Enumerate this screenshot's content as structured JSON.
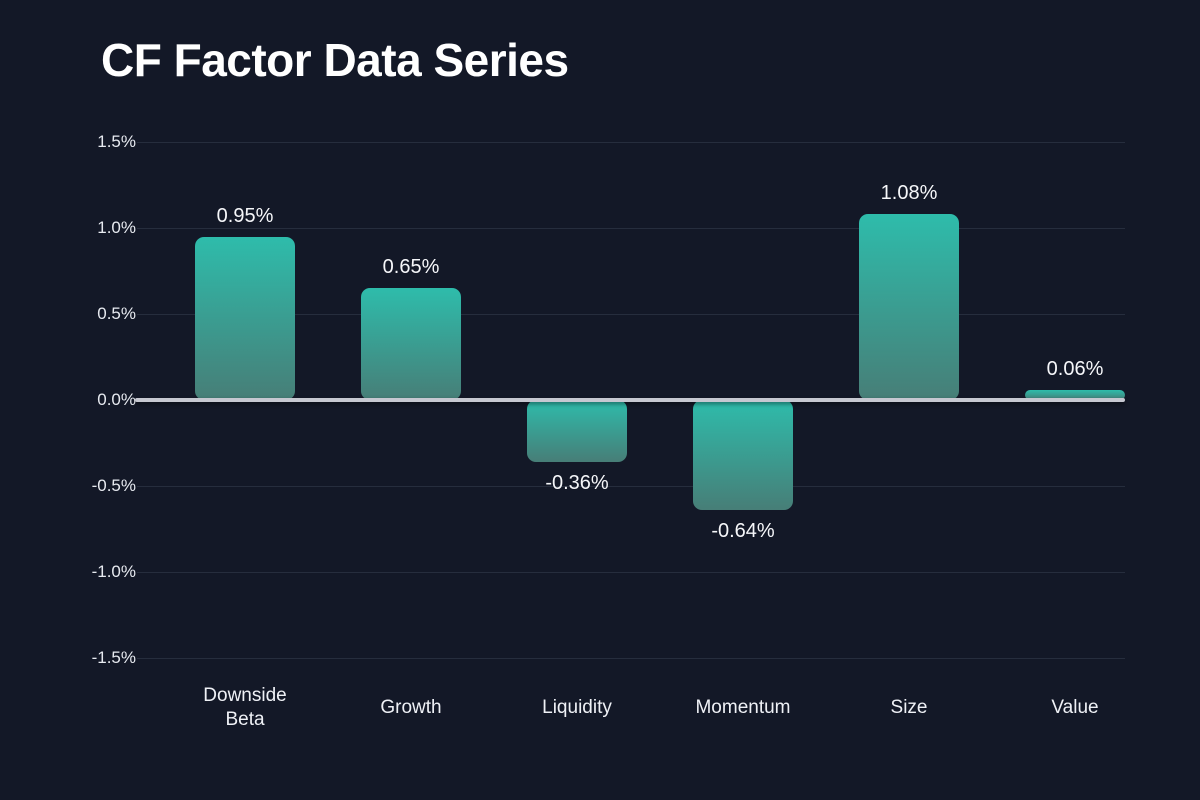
{
  "chart_data": {
    "type": "bar",
    "title": "CF Factor Data Series",
    "categories": [
      "Downside Beta",
      "Growth",
      "Liquidity",
      "Momentum",
      "Size",
      "Value"
    ],
    "values": [
      0.95,
      0.65,
      -0.36,
      -0.64,
      1.08,
      0.06
    ],
    "value_labels": [
      "0.95%",
      "0.65%",
      "-0.36%",
      "-0.64%",
      "1.08%",
      "0.06%"
    ],
    "xlabel": "",
    "ylabel": "",
    "ylim": [
      -1.5,
      1.5
    ],
    "ytick_step": 0.5,
    "yticks": [
      "1.5%",
      "1.0%",
      "0.5%",
      "0.0%",
      "-0.5%",
      "-1.0%",
      "-1.5%"
    ],
    "grid": true,
    "legend": false,
    "zero_line": true,
    "colors": {
      "background": "#131827",
      "bar_gradient_top": "#2ebcab",
      "bar_gradient_bottom": "#477e77",
      "zero_line": "#c6c8d1",
      "grid_line": "#262d3d",
      "title_text": "#ffffff",
      "tick_text": "#e7eaf0",
      "category_text": "#eff1f6",
      "value_text": "#f6f7fa"
    }
  }
}
